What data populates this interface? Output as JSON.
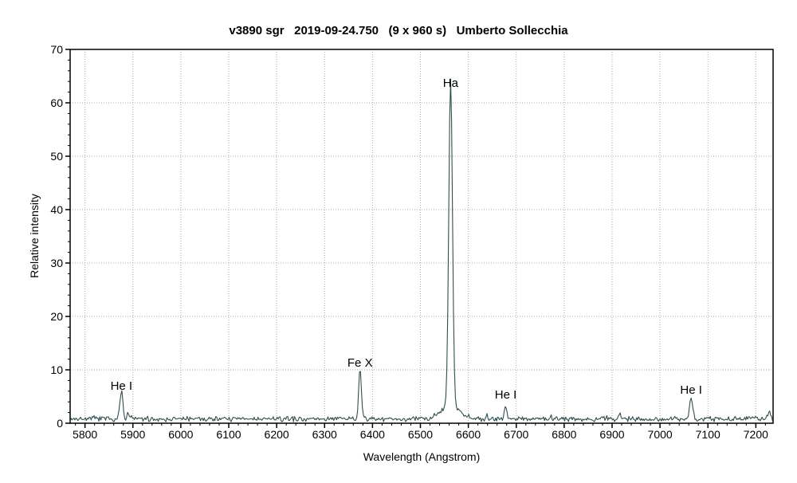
{
  "chart_data": {
    "type": "line",
    "title": "v3890 sgr   2019-09-24.750   (9 x 960 s)   Umberto Sollecchia",
    "xlabel": "Wavelength (Angstrom)",
    "ylabel": "Relative intensity",
    "xlim": [
      5769,
      7236
    ],
    "ylim": [
      0,
      70
    ],
    "x_ticks": [
      5800,
      5900,
      6000,
      6100,
      6200,
      6300,
      6400,
      6500,
      6600,
      6700,
      6800,
      6900,
      7000,
      7100,
      7200
    ],
    "y_ticks": [
      0,
      10,
      20,
      30,
      40,
      50,
      60,
      70
    ],
    "x_minor_step": 20,
    "y_minor_step": 2,
    "grid": "dotted",
    "legend": "none",
    "line_color": "#2F4F4F",
    "grid_color": "#ababab",
    "axis_color": "#000000",
    "continuum": {
      "level": 0.8,
      "noise": 0.55,
      "seed": 7
    },
    "sample_step_angstrom": 2,
    "peaks": [
      {
        "label": "He I",
        "wavelength": 5876,
        "peak_intensity": 6.0,
        "sigma": 3.2
      },
      {
        "label": "",
        "wavelength": 5883,
        "peak_intensity": 0.2,
        "sigma": 1.5
      },
      {
        "label": "",
        "wavelength": 5890,
        "peak_intensity": 1.7,
        "sigma": 2.0
      },
      {
        "label": "",
        "wavelength": 5897,
        "peak_intensity": 1.3,
        "sigma": 1.8
      },
      {
        "label": "Fe X",
        "wavelength": 6374,
        "peak_intensity": 10.3,
        "sigma": 2.8
      },
      {
        "label": "Ha",
        "wavelength": 6563,
        "peak_intensity": 62.0,
        "sigma": 3.8,
        "wing_intensity": 2.6,
        "wing_sigma": 20
      },
      {
        "label": "He I",
        "wavelength": 6678,
        "peak_intensity": 3.4,
        "sigma": 2.8
      },
      {
        "label": "",
        "wavelength": 6916,
        "peak_intensity": 1.7,
        "sigma": 2.2
      },
      {
        "label": "He I",
        "wavelength": 7065,
        "peak_intensity": 4.7,
        "sigma": 3.2
      },
      {
        "label": "",
        "wavelength": 7228,
        "peak_intensity": 2.1,
        "sigma": 3.0
      }
    ],
    "annotations": [
      {
        "text": "He I",
        "wavelength": 5876,
        "y": 6.3
      },
      {
        "text": "Fe X",
        "wavelength": 6374,
        "y": 10.6
      },
      {
        "text": "Ha",
        "wavelength": 6563,
        "y": 63.0
      },
      {
        "text": "He I",
        "wavelength": 6678,
        "y": 4.6
      },
      {
        "text": "He I",
        "wavelength": 7065,
        "y": 5.5
      }
    ]
  }
}
